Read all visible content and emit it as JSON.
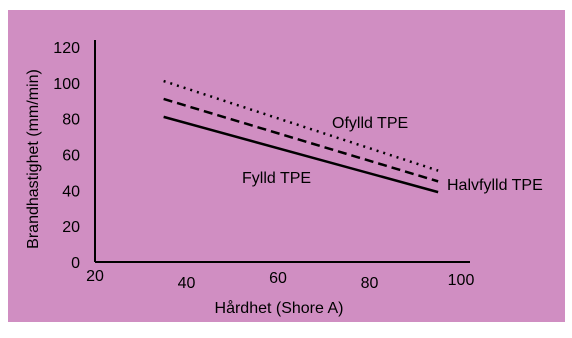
{
  "chart_data": {
    "type": "line",
    "title": "",
    "xlabel": "Hårdhet (Shore A)",
    "ylabel": "Brandhastighet (mm/min)",
    "xlim": [
      20,
      100
    ],
    "ylim": [
      0,
      120
    ],
    "x_ticks": [
      "20",
      "40",
      "60",
      "80",
      "100"
    ],
    "y_ticks": [
      "0",
      "20",
      "40",
      "60",
      "80",
      "100",
      "120"
    ],
    "grid": false,
    "legend": "none",
    "background_color": "#d08ec2",
    "series": [
      {
        "name": "Ofylld TPE",
        "style": "dotted",
        "x": [
          35,
          95
        ],
        "y": [
          101,
          51
        ]
      },
      {
        "name": "Halvfylld TPE",
        "style": "dashed",
        "x": [
          35,
          95
        ],
        "y": [
          91,
          45
        ]
      },
      {
        "name": "Fylld TPE",
        "style": "solid",
        "x": [
          35,
          95
        ],
        "y": [
          81,
          39
        ]
      }
    ]
  }
}
